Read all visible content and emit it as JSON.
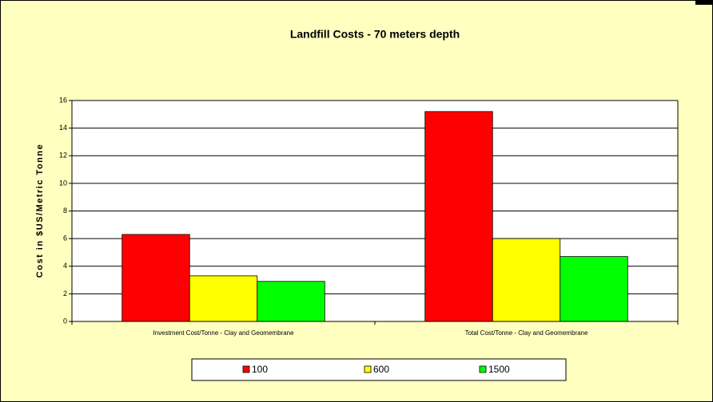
{
  "chart_data": {
    "type": "bar",
    "title": "Landfill Costs - 70 meters depth",
    "y_label": "Cost in $US/Metric Tonne",
    "categories": [
      "Investment Cost/Tonne - Clay and Geomembrane",
      "Total Cost/Tonne - Clay and Geomembrane"
    ],
    "series": [
      {
        "name": "100",
        "color": "#ff0000",
        "values": [
          6.3,
          15.2
        ]
      },
      {
        "name": "600",
        "color": "#ffff00",
        "values": [
          3.3,
          6.0
        ]
      },
      {
        "name": "1500",
        "color": "#00ff00",
        "values": [
          2.9,
          4.7
        ]
      }
    ],
    "ylim": [
      0,
      16
    ],
    "yticks": [
      0,
      2,
      4,
      6,
      8,
      10,
      12,
      14,
      16
    ],
    "grid": true,
    "legend": "bottom"
  }
}
